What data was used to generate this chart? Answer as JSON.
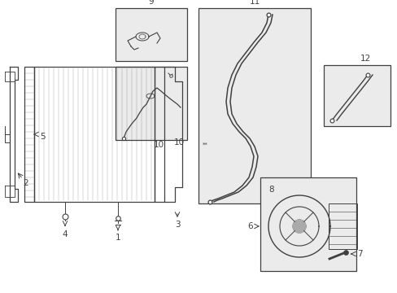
{
  "bg_color": "#ffffff",
  "line_color": "#404040",
  "box_fill": "#ebebeb",
  "label_fontsize": 7.5
}
